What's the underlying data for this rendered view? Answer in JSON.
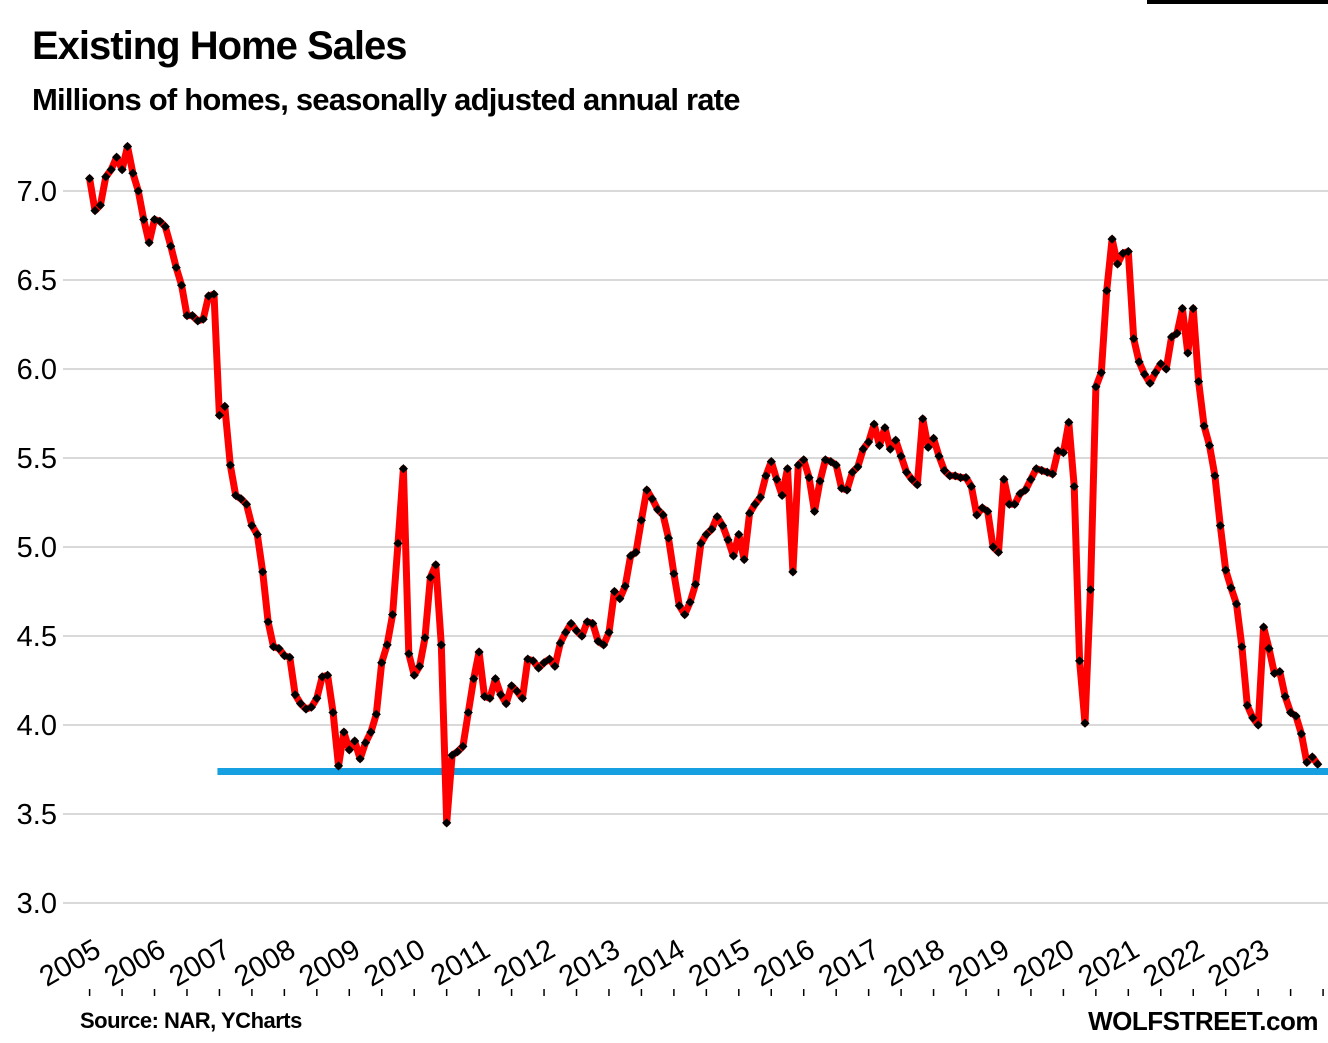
{
  "header": {
    "title": "Existing Home Sales",
    "subtitle": "Millions of homes, seasonally adjusted annual rate"
  },
  "footer": {
    "source": "Source: NAR, YCharts",
    "brand": "WOLFSTREET.com"
  },
  "colors": {
    "line": "#fe0000",
    "marker": "#000000",
    "reference_line": "#169fe1",
    "gridline": "#d9d9d9",
    "text": "#000000",
    "top_rule": "#000000"
  },
  "chart_data": {
    "type": "line",
    "title": "Existing Home Sales",
    "subtitle": "Millions of homes, seasonally adjusted annual rate",
    "ylabel": "Millions of homes, seasonally adjusted annual rate",
    "frequency": "monthly",
    "x_start": "2005-01",
    "x_end": "2023-12",
    "ylim": [
      2.5,
      7.3
    ],
    "grid": "horizontal",
    "legend": "none",
    "y_tick_labels": [
      "7.0",
      "6.5",
      "6.0",
      "5.5",
      "5.0",
      "4.5",
      "4.0",
      "3.5",
      "3.0"
    ],
    "y_tick_values": [
      7.0,
      6.5,
      6.0,
      5.5,
      5.0,
      4.5,
      4.0,
      3.5,
      3.0
    ],
    "x_tick_years": [
      "2005",
      "2006",
      "2007",
      "2008",
      "2009",
      "2010",
      "2011",
      "2012",
      "2013",
      "2014",
      "2015",
      "2016",
      "2017",
      "2018",
      "2019",
      "2020",
      "2021",
      "2022",
      "2023"
    ],
    "marker_style": "black-diamond",
    "reference_line": {
      "value": 3.75,
      "start": "2007-01"
    },
    "series": [
      {
        "name": "Existing home sales",
        "values_by_year": {
          "2005": [
            7.07,
            6.89,
            6.92,
            7.08,
            7.12,
            7.19,
            7.12,
            7.25,
            7.1,
            7.0,
            6.84,
            6.71
          ],
          "2006": [
            6.84,
            6.83,
            6.8,
            6.69,
            6.57,
            6.47,
            6.3,
            6.3,
            6.27,
            6.28,
            6.41,
            6.42
          ],
          "2007": [
            5.74,
            5.79,
            5.46,
            5.29,
            5.27,
            5.24,
            5.12,
            5.07,
            4.86,
            4.58,
            4.44,
            4.43
          ],
          "2008": [
            4.39,
            4.38,
            4.17,
            4.12,
            4.09,
            4.1,
            4.15,
            4.27,
            4.28,
            4.07,
            3.77,
            3.96
          ],
          "2009": [
            3.86,
            3.91,
            3.81,
            3.9,
            3.96,
            4.06,
            4.35,
            4.45,
            4.62,
            5.02,
            5.44,
            4.4
          ],
          "2010": [
            4.28,
            4.33,
            4.49,
            4.83,
            4.9,
            4.45,
            3.45,
            3.83,
            3.85,
            3.88,
            4.07,
            4.26
          ],
          "2011": [
            4.41,
            4.16,
            4.15,
            4.26,
            4.17,
            4.12,
            4.22,
            4.19,
            4.15,
            4.37,
            4.36,
            4.32
          ],
          "2012": [
            4.35,
            4.37,
            4.33,
            4.46,
            4.52,
            4.57,
            4.53,
            4.5,
            4.58,
            4.57,
            4.47,
            4.45
          ],
          "2013": [
            4.52,
            4.75,
            4.71,
            4.78,
            4.95,
            4.97,
            5.15,
            5.32,
            5.27,
            5.21,
            5.18,
            5.05
          ],
          "2014": [
            4.85,
            4.67,
            4.62,
            4.69,
            4.79,
            5.02,
            5.07,
            5.1,
            5.17,
            5.12,
            5.04,
            4.95
          ],
          "2015": [
            5.07,
            4.93,
            5.19,
            5.24,
            5.28,
            5.4,
            5.48,
            5.38,
            5.29,
            5.44,
            4.86,
            5.46
          ],
          "2016": [
            5.49,
            5.39,
            5.2,
            5.37,
            5.49,
            5.48,
            5.46,
            5.33,
            5.32,
            5.42,
            5.45,
            5.55
          ],
          "2017": [
            5.59,
            5.69,
            5.57,
            5.67,
            5.55,
            5.6,
            5.51,
            5.42,
            5.38,
            5.35,
            5.72,
            5.56
          ],
          "2018": [
            5.61,
            5.51,
            5.43,
            5.4,
            5.4,
            5.39,
            5.39,
            5.34,
            5.18,
            5.22,
            5.2,
            5.0
          ],
          "2019": [
            4.97,
            5.38,
            5.24,
            5.24,
            5.3,
            5.32,
            5.38,
            5.44,
            5.43,
            5.42,
            5.41,
            5.54
          ],
          "2020": [
            5.53,
            5.7,
            5.34,
            4.36,
            4.01,
            4.76,
            5.9,
            5.98,
            6.44,
            6.73,
            6.59,
            6.65
          ],
          "2021": [
            6.66,
            6.17,
            6.04,
            5.97,
            5.92,
            5.98,
            6.03,
            6.0,
            6.18,
            6.2,
            6.34,
            6.09
          ],
          "2022": [
            6.34,
            5.93,
            5.68,
            5.57,
            5.4,
            5.12,
            4.87,
            4.77,
            4.68,
            4.44,
            4.11,
            4.04
          ],
          "2023": [
            4.0,
            4.55,
            4.43,
            4.29,
            4.3,
            4.16,
            4.07,
            4.05,
            3.95,
            3.79,
            3.82,
            3.78
          ]
        }
      }
    ]
  }
}
